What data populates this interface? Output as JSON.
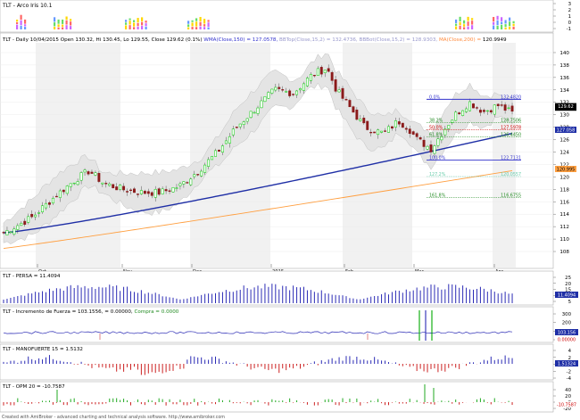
{
  "panes": {
    "arco_iris": {
      "title": "TLT - Arco Iris 10.1",
      "y_ticks": [
        "3",
        "2",
        "1",
        "0",
        "-1"
      ]
    },
    "price": {
      "header": [
        {
          "text": "TLT - Daily 10/04/2015 Open 130.32, Hi 130.45, Lo 129.55, Close 129.62 (0.1%) ",
          "color": "#000000"
        },
        {
          "text": "WMA(Close,150) = 127.0578, ",
          "color": "#3333cc"
        },
        {
          "text": "BBTop(Close,15,2) = 132.4736, ",
          "color": "#9999cc"
        },
        {
          "text": "BBBot(Close,15,2) = 128.9303, ",
          "color": "#9999cc"
        },
        {
          "text": "MA(Close,200) = ",
          "color": "#ff8a3c"
        },
        {
          "text": "120.9949",
          "color": "#000000"
        }
      ],
      "y_ticks": [
        "140",
        "138",
        "136",
        "134",
        "132",
        "130",
        "128",
        "126",
        "124",
        "122",
        "120",
        "118",
        "116",
        "114",
        "112",
        "110",
        "108"
      ],
      "x_labels": [
        "Oct",
        "Nov",
        "Dec",
        "2015",
        "Feb",
        "Mar",
        "Apr"
      ],
      "fib_levels": [
        {
          "label": "0.0%",
          "value": "132.4820",
          "color": "#3333cc"
        },
        {
          "label": "38.2%",
          "value": "128.7506",
          "color": "#228b22"
        },
        {
          "label": "50.0%",
          "value": "127.5978",
          "color": "#cc0000"
        },
        {
          "label": "61.8%",
          "value": "126.4450",
          "color": "#228b22"
        },
        {
          "label": "100.0%",
          "value": "122.7131",
          "color": "#3333cc"
        },
        {
          "label": "127.2%",
          "value": "120.0557",
          "color": "#66ccaa"
        },
        {
          "label": "161.8%",
          "value": "116.6755",
          "color": "#228b22"
        }
      ],
      "right_tags": [
        {
          "text": "129.62",
          "bg": "#000000",
          "fg": "#ffffff"
        },
        {
          "text": "129.62",
          "bg": "#000000",
          "fg": "#ffffff"
        },
        {
          "text": "127.058",
          "bg": "#1f2fa6",
          "fg": "#ffffff"
        },
        {
          "text": "120.995",
          "bg": "#ff9f40",
          "fg": "#000000"
        }
      ],
      "ma_colors": {
        "wma150": "#1f2fa6",
        "ma200": "#ff9f40",
        "bollinger": "#c8c8c8"
      },
      "candle_colors": {
        "up": "#00cc00",
        "down": "#8b1a1a"
      }
    },
    "persa": {
      "title": "TLT - PERSA = 11.4094",
      "y_ticks": [
        "25",
        "20",
        "15",
        "10",
        "5"
      ],
      "tag": "11.4094"
    },
    "fuerza": {
      "title": "TLT - Incremento de Fuerza = 103.1556, ",
      "title_extra": [
        {
          "text": "= 0.00000, ",
          "color": "#000000"
        },
        {
          "text": "Compra = 0.0000",
          "color": "#228b22"
        }
      ],
      "y_ticks": [
        "300",
        "200",
        "100",
        "0"
      ],
      "tags": [
        "103.156",
        "0.00000"
      ]
    },
    "manofuerte": {
      "title": "TLT - MANOFUERTE 15 = 1.5132",
      "y_ticks": [
        "4",
        "2",
        "0",
        "-2",
        "-4"
      ],
      "tag": "1.51324"
    },
    "opm": {
      "title": "TLT - OPM 20 = -10.7587",
      "y_ticks": [
        "40",
        "20",
        "0",
        "-20"
      ],
      "tag": "-10.7587"
    }
  },
  "footer": "Created with AmiBroker - advanced charting and technical analysis software. http://www.amibroker.com"
}
